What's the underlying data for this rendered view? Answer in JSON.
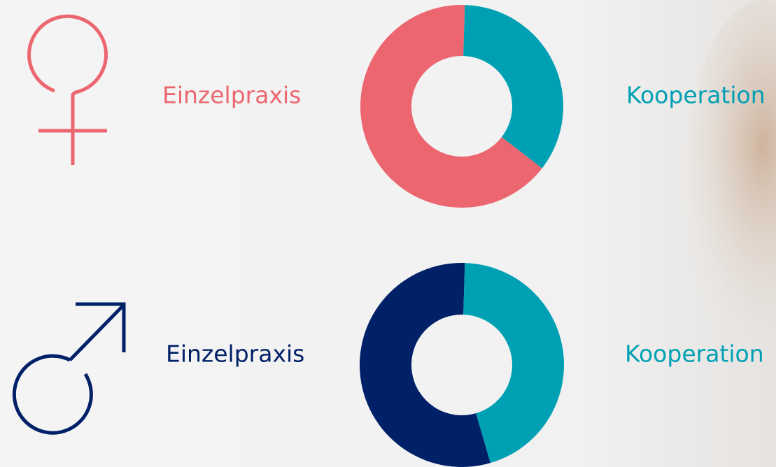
{
  "chart_data": [
    {
      "type": "pie",
      "donut": true,
      "categories": [
        "Einzelpraxis",
        "Kooperation"
      ],
      "values": [
        65,
        35
      ],
      "colors": [
        "#ec6670",
        "#00a0b4"
      ]
    },
    {
      "type": "pie",
      "donut": true,
      "categories": [
        "Einzelpraxis",
        "Kooperation"
      ],
      "values": [
        55,
        45
      ],
      "colors": [
        "#002068",
        "#00a0b4"
      ]
    }
  ]
}
